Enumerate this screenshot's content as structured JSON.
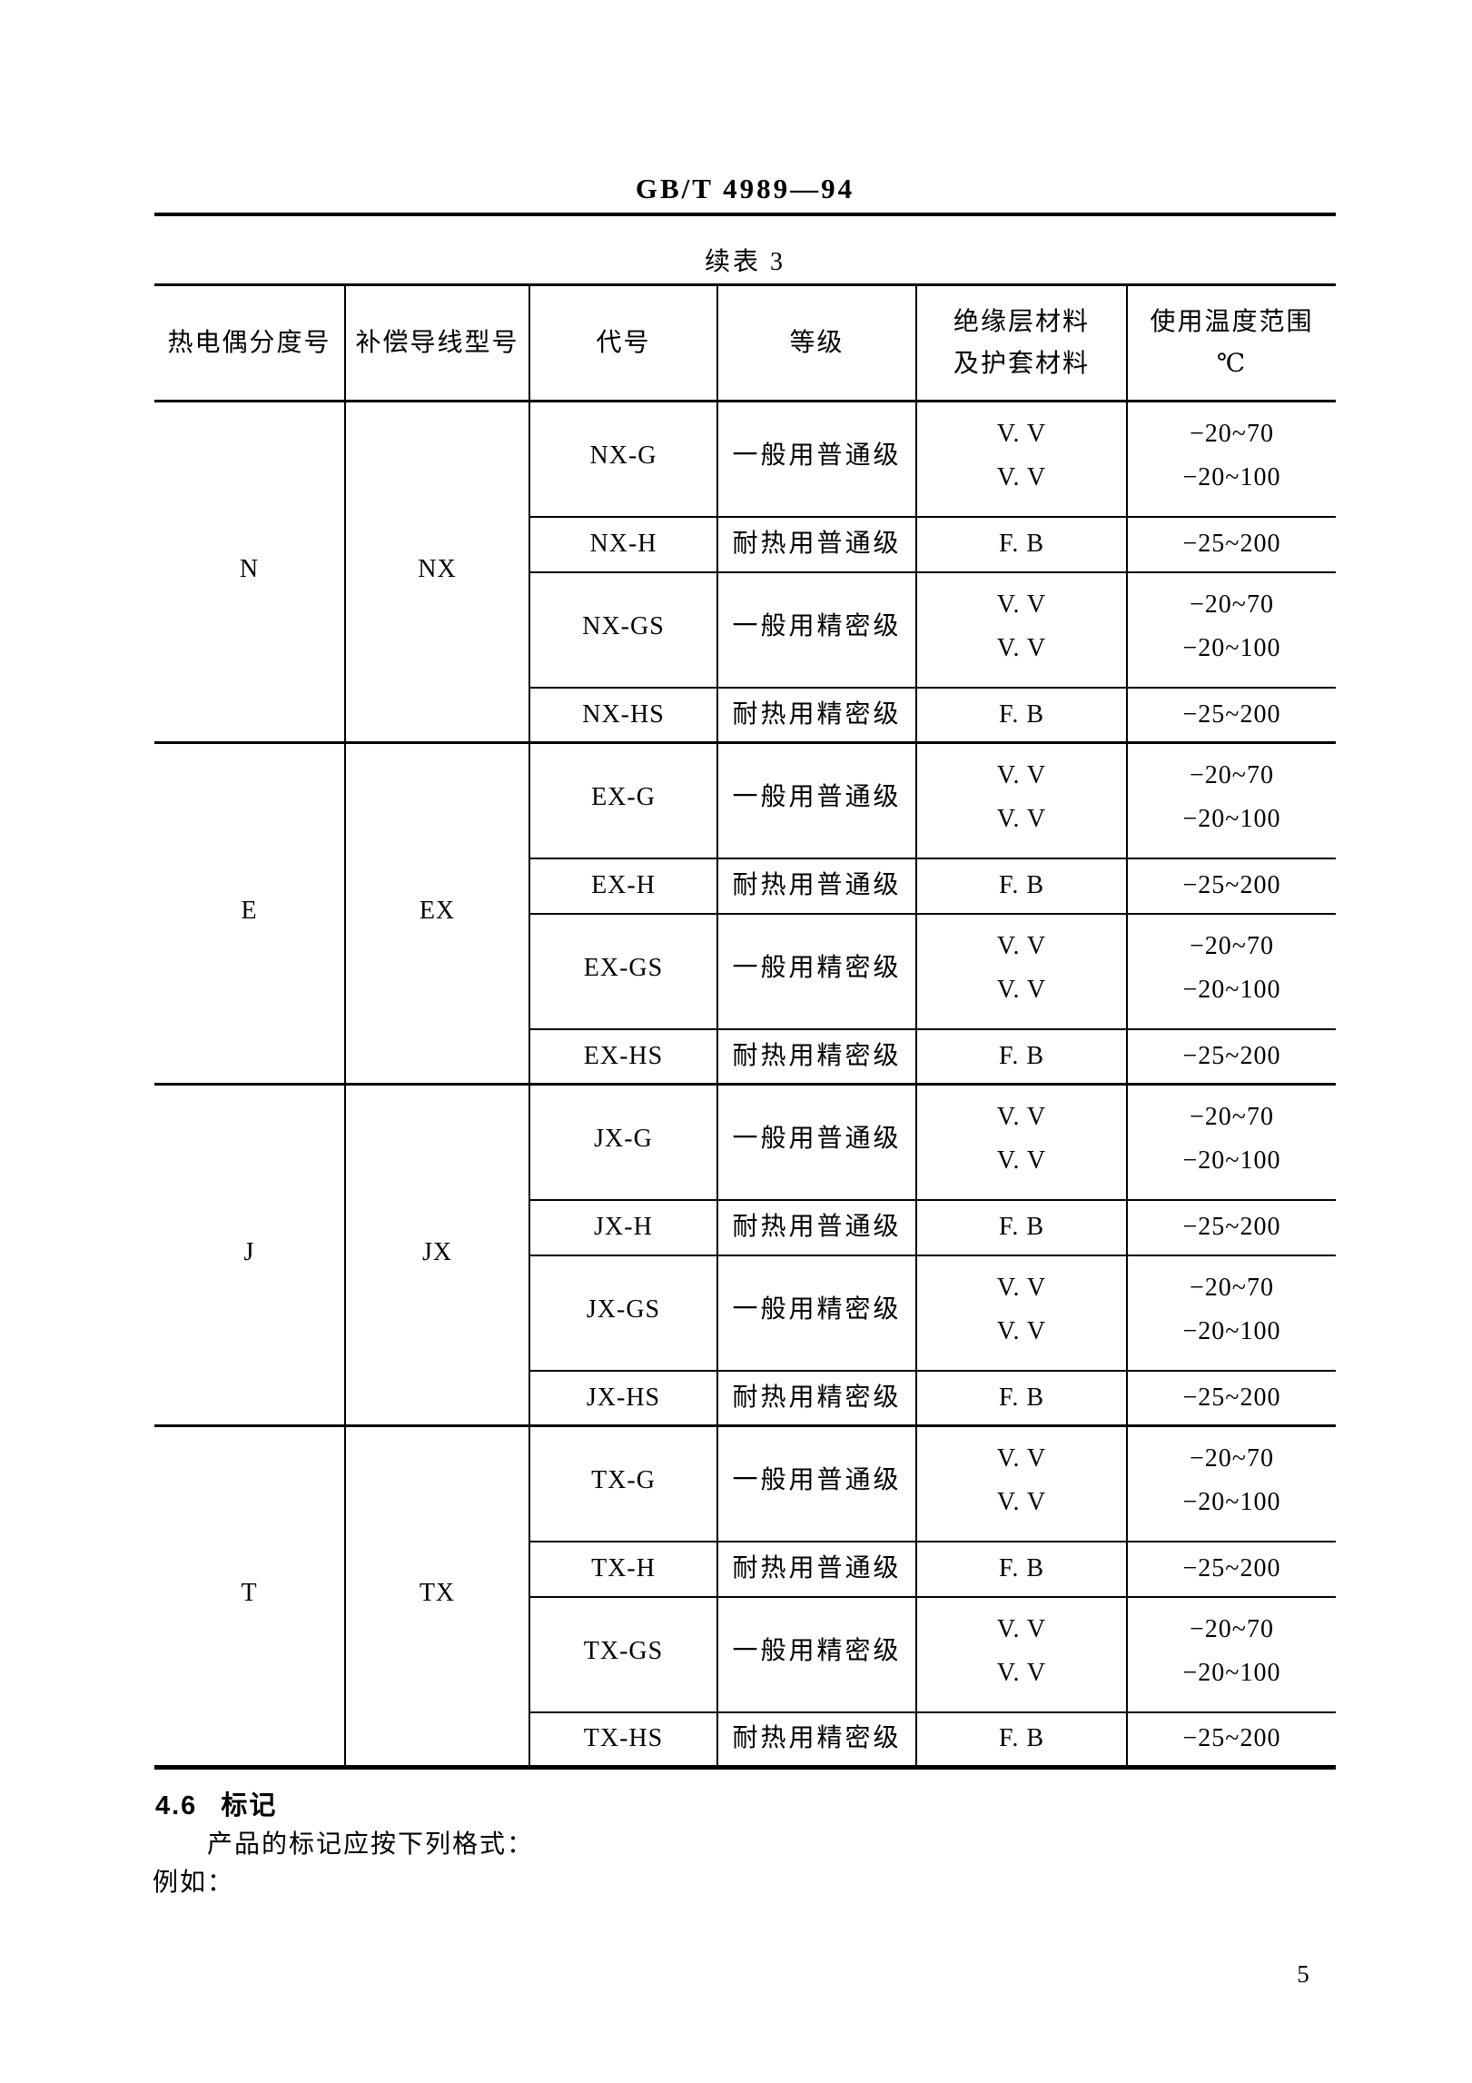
{
  "page": {
    "doc_code": "GB/T 4989—94",
    "table_caption": "续表 3",
    "page_number": "5"
  },
  "table": {
    "headers": [
      [
        "热电偶分度号"
      ],
      [
        "补偿导线型号"
      ],
      [
        "代号"
      ],
      [
        "等级"
      ],
      [
        "绝缘层材料",
        "及护套材料"
      ],
      [
        "使用温度范围",
        "℃"
      ]
    ],
    "groups": [
      {
        "thermocouple": "N",
        "wire_model": "NX",
        "rows": [
          {
            "code": "NX-G",
            "grade": "一般用普通级",
            "materials": [
              "V. V",
              "V. V"
            ],
            "temp_ranges": [
              "−20~70",
              "−20~100"
            ]
          },
          {
            "code": "NX-H",
            "grade": "耐热用普通级",
            "materials": [
              "F. B"
            ],
            "temp_ranges": [
              "−25~200"
            ]
          },
          {
            "code": "NX-GS",
            "grade": "一般用精密级",
            "materials": [
              "V. V",
              "V. V"
            ],
            "temp_ranges": [
              "−20~70",
              "−20~100"
            ]
          },
          {
            "code": "NX-HS",
            "grade": "耐热用精密级",
            "materials": [
              "F. B"
            ],
            "temp_ranges": [
              "−25~200"
            ]
          }
        ]
      },
      {
        "thermocouple": "E",
        "wire_model": "EX",
        "rows": [
          {
            "code": "EX-G",
            "grade": "一般用普通级",
            "materials": [
              "V. V",
              "V. V"
            ],
            "temp_ranges": [
              "−20~70",
              "−20~100"
            ]
          },
          {
            "code": "EX-H",
            "grade": "耐热用普通级",
            "materials": [
              "F. B"
            ],
            "temp_ranges": [
              "−25~200"
            ]
          },
          {
            "code": "EX-GS",
            "grade": "一般用精密级",
            "materials": [
              "V. V",
              "V. V"
            ],
            "temp_ranges": [
              "−20~70",
              "−20~100"
            ]
          },
          {
            "code": "EX-HS",
            "grade": "耐热用精密级",
            "materials": [
              "F. B"
            ],
            "temp_ranges": [
              "−25~200"
            ]
          }
        ]
      },
      {
        "thermocouple": "J",
        "wire_model": "JX",
        "rows": [
          {
            "code": "JX-G",
            "grade": "一般用普通级",
            "materials": [
              "V. V",
              "V. V"
            ],
            "temp_ranges": [
              "−20~70",
              "−20~100"
            ]
          },
          {
            "code": "JX-H",
            "grade": "耐热用普通级",
            "materials": [
              "F. B"
            ],
            "temp_ranges": [
              "−25~200"
            ]
          },
          {
            "code": "JX-GS",
            "grade": "一般用精密级",
            "materials": [
              "V. V",
              "V. V"
            ],
            "temp_ranges": [
              "−20~70",
              "−20~100"
            ]
          },
          {
            "code": "JX-HS",
            "grade": "耐热用精密级",
            "materials": [
              "F. B"
            ],
            "temp_ranges": [
              "−25~200"
            ]
          }
        ]
      },
      {
        "thermocouple": "T",
        "wire_model": "TX",
        "rows": [
          {
            "code": "TX-G",
            "grade": "一般用普通级",
            "materials": [
              "V. V",
              "V. V"
            ],
            "temp_ranges": [
              "−20~70",
              "−20~100"
            ]
          },
          {
            "code": "TX-H",
            "grade": "耐热用普通级",
            "materials": [
              "F. B"
            ],
            "temp_ranges": [
              "−25~200"
            ]
          },
          {
            "code": "TX-GS",
            "grade": "一般用精密级",
            "materials": [
              "V. V",
              "V. V"
            ],
            "temp_ranges": [
              "−20~70",
              "−20~100"
            ]
          },
          {
            "code": "TX-HS",
            "grade": "耐热用精密级",
            "materials": [
              "F. B"
            ],
            "temp_ranges": [
              "−25~200"
            ]
          }
        ]
      }
    ]
  },
  "section": {
    "number": "4.6",
    "title": "标记",
    "body_line": "产品的标记应按下列格式：",
    "example_label": "例如："
  }
}
